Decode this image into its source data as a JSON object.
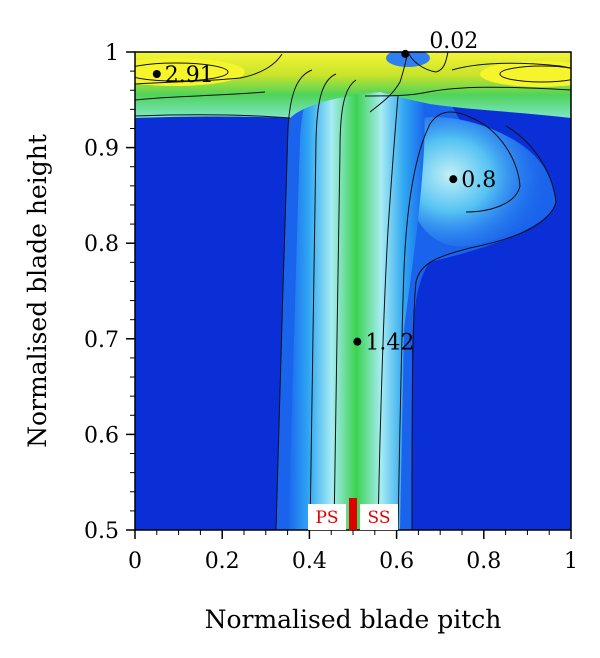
{
  "chart_data": {
    "type": "heatmap",
    "title": "",
    "xlabel": "Normalised blade pitch",
    "ylabel": "Normalised blade height",
    "xlim": [
      0,
      1
    ],
    "ylim": [
      0.5,
      1
    ],
    "x_ticks": [
      "0",
      "0.2",
      "0.4",
      "0.6",
      "0.8",
      "1"
    ],
    "y_ticks": [
      "0.5",
      "0.6",
      "0.7",
      "0.8",
      "0.9",
      "1"
    ],
    "colormap": [
      "#0a2fd6",
      "#1565ee",
      "#2aa0f2",
      "#9ee8f4",
      "#6fe69a",
      "#33d04a",
      "#bfe028",
      "#f2f230"
    ],
    "annotations": [
      {
        "label": "2.91",
        "x": 0.05,
        "y": 0.977
      },
      {
        "label": "0.02",
        "x": 0.62,
        "y": 0.998
      },
      {
        "label": "0.8",
        "x": 0.73,
        "y": 0.867
      },
      {
        "label": "1.42",
        "x": 0.51,
        "y": 0.697
      }
    ],
    "blade_marker": {
      "x": 0.5,
      "left_label": "PS",
      "right_label": "SS",
      "color": "#e00000"
    }
  }
}
